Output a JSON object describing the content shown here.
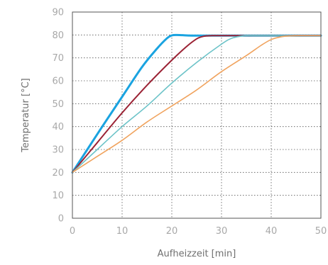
{
  "chart_data": {
    "type": "line",
    "title": "",
    "xlabel": "Aufheizzeit [min]",
    "ylabel": "Temperatur [°C]",
    "xlim": [
      0,
      50
    ],
    "ylim": [
      0,
      90
    ],
    "xticks": [
      0,
      10,
      20,
      30,
      40,
      50
    ],
    "yticks": [
      0,
      10,
      20,
      30,
      40,
      50,
      60,
      70,
      80,
      90
    ],
    "grid": true,
    "legend": "none",
    "series": [
      {
        "color": "#1aa3e0",
        "x": [
          0,
          3,
          6,
          10,
          14,
          17,
          19,
          20,
          21,
          23,
          25,
          30,
          40,
          50
        ],
        "y": [
          20,
          30,
          40,
          53,
          66,
          74,
          78.5,
          79.8,
          80,
          79.8,
          79.7,
          79.7,
          79.7,
          79.7
        ]
      },
      {
        "color": "#9b2335",
        "x": [
          0,
          5,
          10,
          15,
          20,
          23,
          25,
          26,
          27,
          28,
          30,
          35,
          40,
          50
        ],
        "y": [
          20,
          33,
          46,
          58,
          69,
          75,
          78.3,
          79.2,
          79.6,
          79.7,
          79.7,
          79.7,
          79.7,
          79.7
        ]
      },
      {
        "color": "#6cc3c8",
        "x": [
          0,
          5,
          10,
          15,
          20,
          25,
          30,
          32,
          34,
          35,
          37,
          40,
          50
        ],
        "y": [
          20,
          30,
          40,
          49,
          59,
          68,
          76,
          78.5,
          79.5,
          79.7,
          79.7,
          79.7,
          79.7
        ]
      },
      {
        "color": "#f0a35e",
        "x": [
          0,
          5,
          10,
          15,
          20,
          25,
          30,
          35,
          38,
          40,
          42,
          44,
          46,
          50
        ],
        "y": [
          20,
          27,
          34,
          42,
          49,
          56,
          64,
          71,
          75.5,
          78,
          79.2,
          79.6,
          79.7,
          79.7
        ]
      }
    ]
  }
}
